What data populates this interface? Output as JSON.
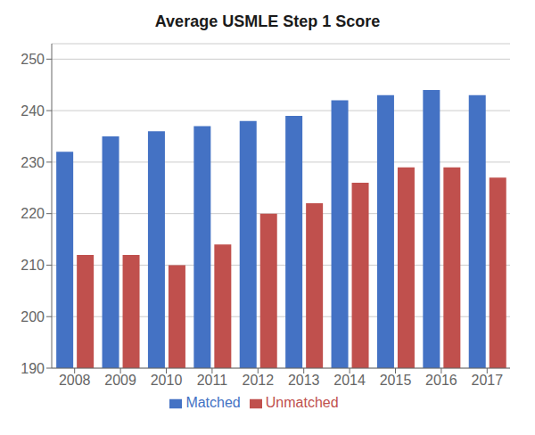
{
  "chart_data": {
    "type": "bar",
    "title": "Average USMLE Step 1 Score",
    "categories": [
      "2008",
      "2009",
      "2010",
      "2011",
      "2012",
      "2013",
      "2014",
      "2015",
      "2016",
      "2017"
    ],
    "series": [
      {
        "name": "Matched",
        "color": "#4472C4",
        "values": [
          232,
          235,
          236,
          237,
          238,
          239,
          242,
          243,
          244,
          243
        ]
      },
      {
        "name": "Unmatched",
        "color": "#C0504D",
        "values": [
          212,
          212,
          210,
          214,
          220,
          222,
          226,
          229,
          229,
          227
        ]
      }
    ],
    "ylim": [
      190,
      253
    ],
    "yticks": [
      190,
      200,
      210,
      220,
      230,
      240,
      250
    ],
    "grid": true,
    "legend": "bottom"
  }
}
